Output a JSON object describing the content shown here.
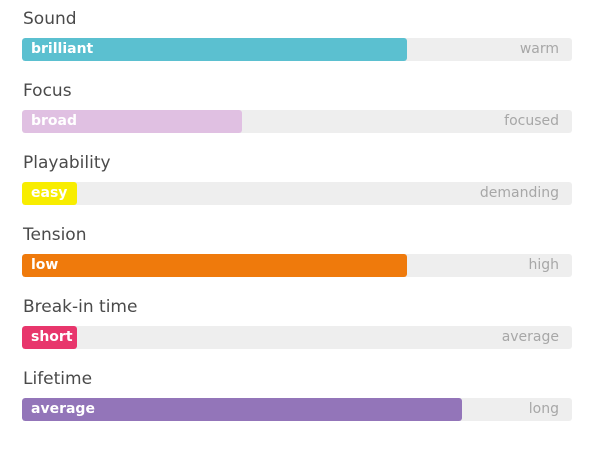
{
  "properties": [
    {
      "title": "Sound",
      "left": "brilliant",
      "right": "warm",
      "level": 0.7,
      "color": "#5bc0d0"
    },
    {
      "title": "Focus",
      "left": "broad",
      "right": "focused",
      "level": 0.4,
      "color": "#e0c0e2"
    },
    {
      "title": "Playability",
      "left": "easy",
      "right": "demanding",
      "level": 0.1,
      "color": "#f8ed00"
    },
    {
      "title": "Tension",
      "left": "low",
      "right": "high",
      "level": 0.7,
      "color": "#ef7a0c"
    },
    {
      "title": "Break-in time",
      "left": "short",
      "right": "average",
      "level": 0.1,
      "color": "#e8366c"
    },
    {
      "title": "Lifetime",
      "left": "average",
      "right": "long",
      "level": 0.8,
      "color": "#9375b9"
    }
  ]
}
